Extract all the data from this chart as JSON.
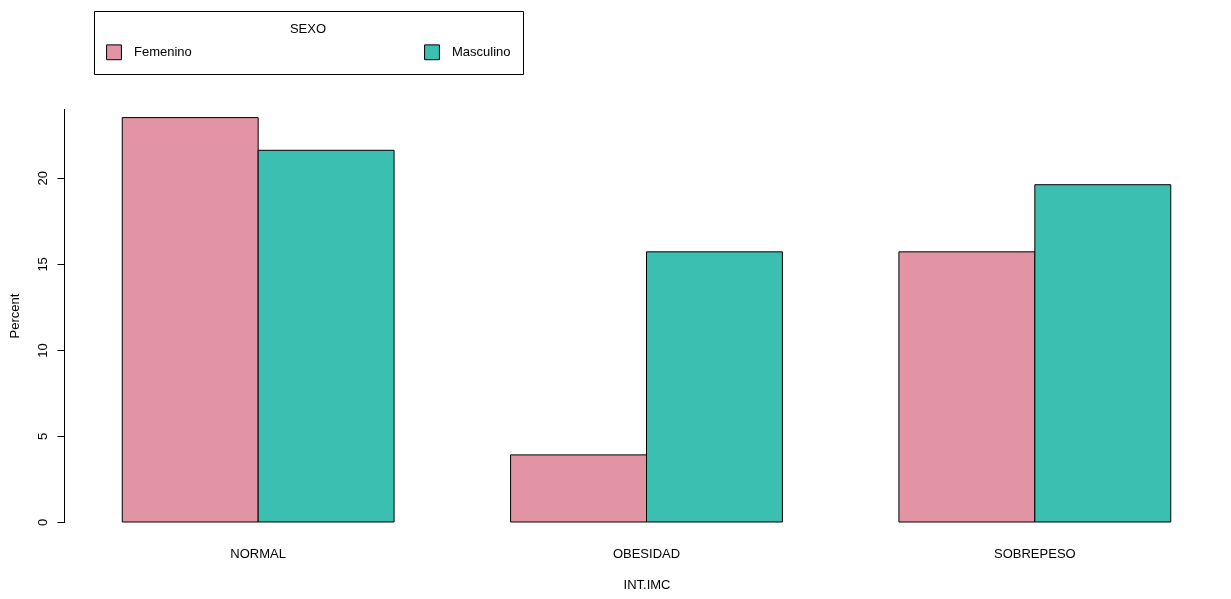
{
  "chart_data": {
    "type": "bar",
    "xlabel": "INT.IMC",
    "ylabel": "Percent",
    "legend_title": "SEXO",
    "legend": "top left",
    "categories": [
      "NORMAL",
      "OBESIDAD",
      "SOBREPESO"
    ],
    "series": [
      {
        "name": "Femenino",
        "color": "#e293a4",
        "values": [
          23.5,
          3.9,
          15.7
        ]
      },
      {
        "name": "Masculino",
        "color": "#3bbfb0",
        "values": [
          21.6,
          15.7,
          19.6
        ]
      }
    ],
    "ylim": [
      0,
      24
    ],
    "yticks": [
      0,
      5,
      10,
      15,
      20
    ],
    "grid": false
  }
}
